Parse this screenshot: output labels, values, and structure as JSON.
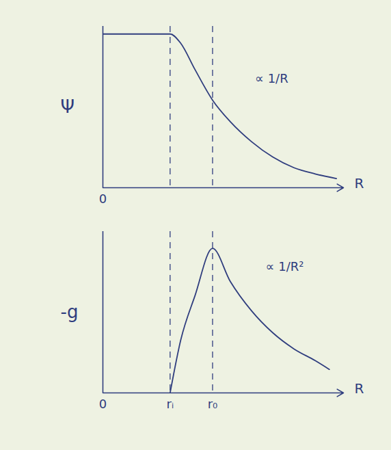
{
  "chart_data": [
    {
      "type": "line",
      "y_label": "Ψ",
      "x_label": "R",
      "color": "#2f3d7e",
      "x": [
        0,
        0.5,
        0.95,
        1.1,
        1.3,
        1.55,
        1.8,
        2.1,
        2.4,
        2.7,
        3.0,
        3.3
      ],
      "values": [
        10,
        10,
        10,
        9.4,
        7.7,
        5.7,
        4.3,
        3.0,
        2.0,
        1.3,
        0.9,
        0.6
      ],
      "xlim": [
        0,
        3.4
      ],
      "ylim": [
        0,
        10.5
      ],
      "xticks": [
        {
          "value": 0,
          "label": "0"
        }
      ],
      "yticks": [],
      "vlines": [
        0.95,
        1.55
      ],
      "annotations": [
        {
          "text": "∝ 1/R",
          "x": 2.15,
          "y": 7.1
        }
      ],
      "tick_labels": "x",
      "line_style": "solid"
    },
    {
      "type": "line",
      "y_label": "-g",
      "x_label": "R",
      "color": "#2f3d7e",
      "x": [
        0.95,
        1.1,
        1.3,
        1.55,
        1.8,
        2.1,
        2.4,
        2.7,
        3.0,
        3.2
      ],
      "values": [
        0,
        3.6,
        6.6,
        9.85,
        7.6,
        5.6,
        4.1,
        3.0,
        2.2,
        1.6
      ],
      "xlim": [
        0,
        3.4
      ],
      "ylim": [
        0,
        11
      ],
      "xticks": [
        {
          "value": 0,
          "label": "0"
        },
        {
          "value": 0.95,
          "label": "rᵢ"
        },
        {
          "value": 1.55,
          "label": "r₀"
        }
      ],
      "yticks": [],
      "vlines": [
        0.95,
        1.55
      ],
      "annotations": [
        {
          "text": "∝ 1/R²",
          "x": 2.3,
          "y": 8.6
        }
      ],
      "tick_labels": "x",
      "line_style": "solid"
    }
  ]
}
